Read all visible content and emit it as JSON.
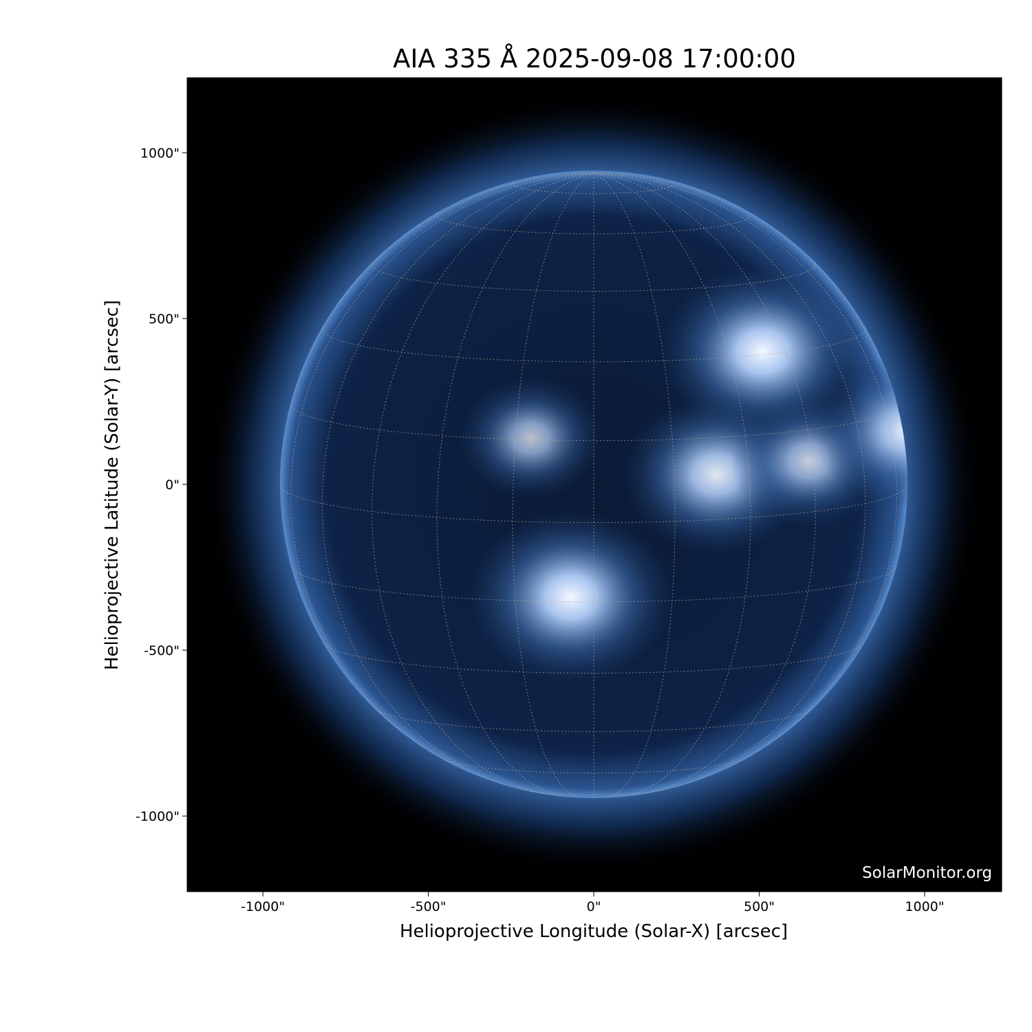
{
  "chart_data": {
    "type": "image",
    "title": "AIA 335 Å 2025-09-08 17:00:00",
    "xlabel": "Helioprojective Longitude (Solar-X) [arcsec]",
    "ylabel": "Helioprojective Latitude (Solar-Y) [arcsec]",
    "xlim": [
      -1229,
      1233
    ],
    "ylim": [
      -1228,
      1226
    ],
    "xticks": [
      -1000,
      -500,
      0,
      500,
      1000
    ],
    "xtick_labels": [
      "-1000\"",
      "-500\"",
      "0\"",
      "500\"",
      "1000\""
    ],
    "yticks": [
      1000,
      500,
      0,
      -500,
      -1000
    ],
    "ytick_labels": [
      "1000\"",
      "500\"",
      "0\"",
      "-500\"",
      "-1000\""
    ],
    "solar_radius_arcsec": 948,
    "grid": true,
    "grid_spacing_deg": 15,
    "colormap": "sdoaia335",
    "colors": {
      "background": "#000000",
      "disk": "#0a1a33",
      "corona": "#3a6fb5",
      "bright": "#e8f0ff",
      "grid": "#b8a98a"
    },
    "active_regions": [
      {
        "x": 510,
        "y": 400,
        "intensity": 1.0
      },
      {
        "x": 370,
        "y": 30,
        "intensity": 0.85
      },
      {
        "x": -70,
        "y": -340,
        "intensity": 1.0
      },
      {
        "x": 650,
        "y": 70,
        "intensity": 0.6
      },
      {
        "x": -190,
        "y": 140,
        "intensity": 0.5
      },
      {
        "x": 940,
        "y": 160,
        "intensity": 0.8
      }
    ]
  },
  "watermark": "SolarMonitor.org"
}
